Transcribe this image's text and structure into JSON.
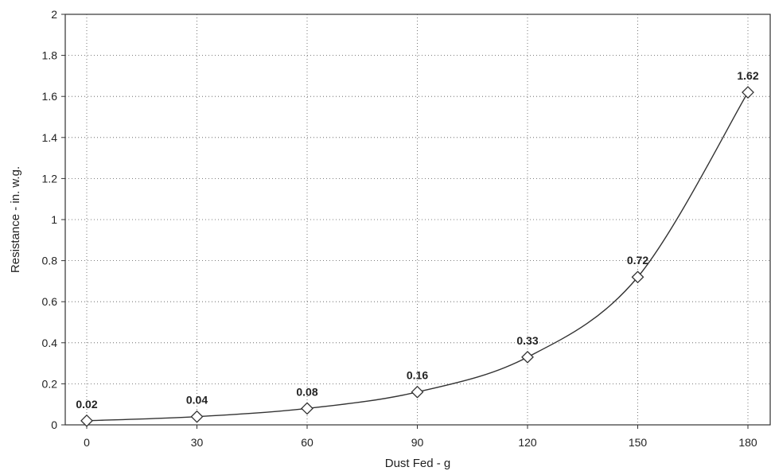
{
  "chart_data": {
    "type": "line",
    "title": "",
    "xlabel": "Dust Fed - g",
    "ylabel": "Resistance - in. w.g.",
    "x": [
      0,
      30,
      60,
      90,
      120,
      150,
      180
    ],
    "x_ticks": [
      0,
      30,
      60,
      90,
      120,
      150,
      180
    ],
    "y_ticks": [
      0,
      0.2,
      0.4,
      0.6,
      0.8,
      1,
      1.2,
      1.4,
      1.6,
      1.8,
      2
    ],
    "xlim": [
      0,
      180
    ],
    "ylim": [
      0,
      2
    ],
    "grid": true,
    "series": [
      {
        "values": [
          0.02,
          0.04,
          0.08,
          0.16,
          0.33,
          0.72,
          1.62
        ],
        "data_labels": [
          "0.02",
          "0.04",
          "0.08",
          "0.16",
          "0.33",
          "0.72",
          "1.62"
        ],
        "marker": "diamond",
        "color": "#333333"
      }
    ]
  }
}
